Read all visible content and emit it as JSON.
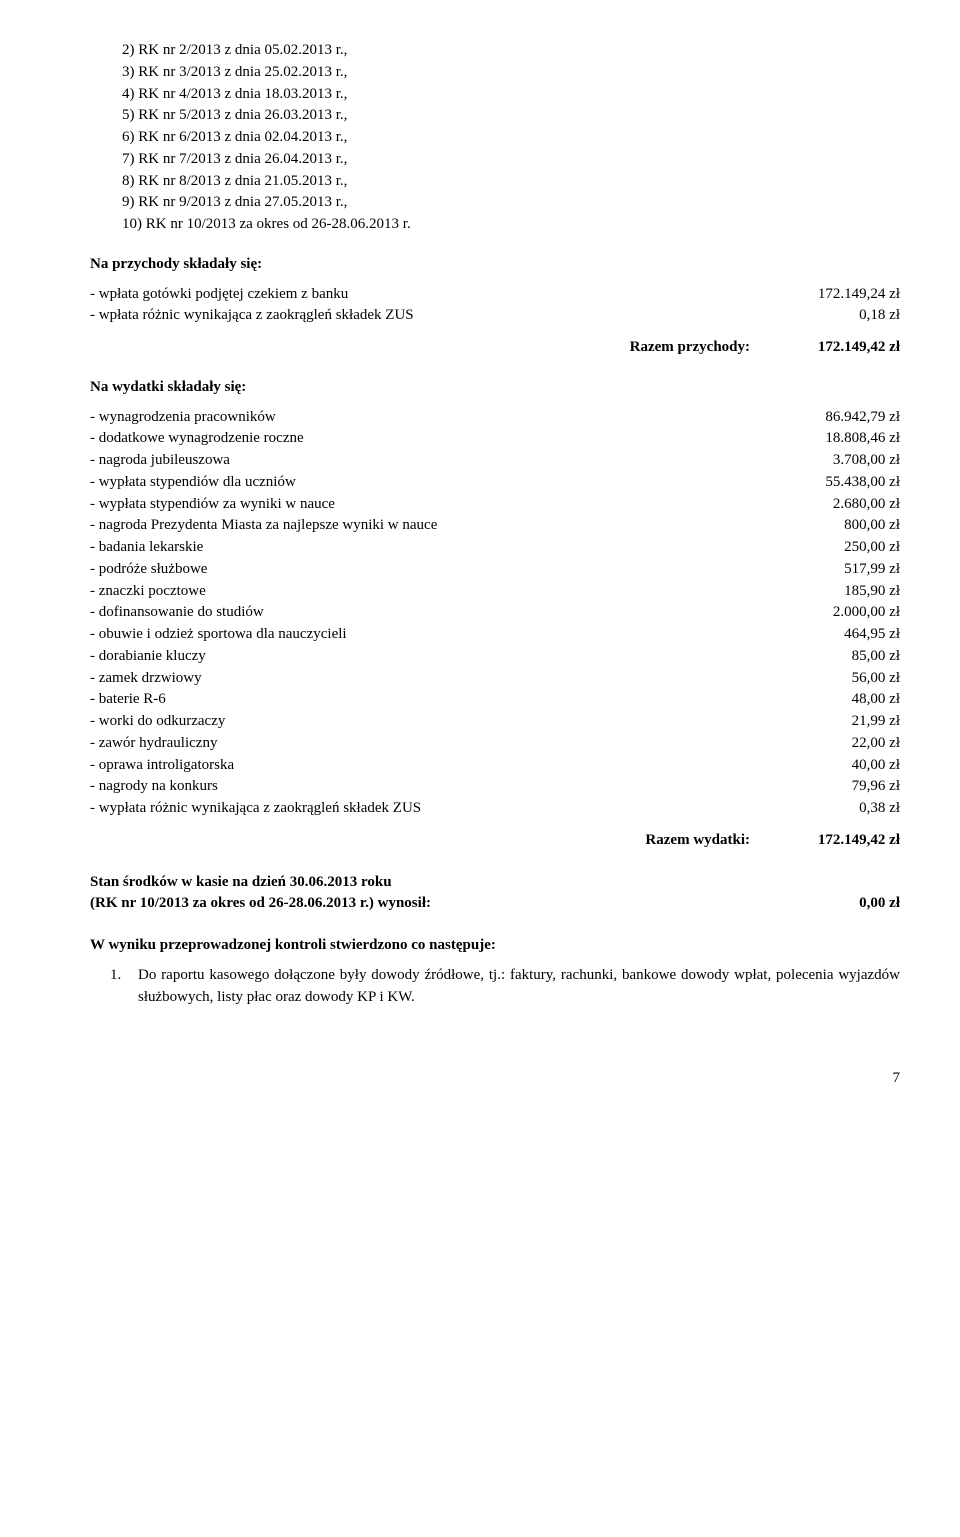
{
  "rk_list": [
    "2) RK nr 2/2013 z dnia 05.02.2013 r.,",
    "3) RK nr 3/2013 z dnia 25.02.2013 r.,",
    "4) RK nr 4/2013 z dnia 18.03.2013 r.,",
    "5) RK nr 5/2013 z dnia 26.03.2013 r.,",
    "6) RK nr 6/2013 z dnia 02.04.2013 r.,",
    "7) RK nr 7/2013 z dnia 26.04.2013 r.,",
    "8) RK nr 8/2013 z dnia 21.05.2013 r.,",
    "9) RK nr 9/2013 z dnia 27.05.2013 r.,",
    "10) RK nr 10/2013 za okres od 26-28.06.2013 r."
  ],
  "headings": {
    "przychody": "Na przychody składały się:",
    "wydatki": "Na wydatki składały się:",
    "razem_przychody": "Razem przychody:",
    "razem_wydatki": "Razem wydatki:",
    "wyniku": "W wyniku przeprowadzonej kontroli stwierdzono co następuje:"
  },
  "przychody_items": [
    {
      "label": "- wpłata gotówki podjętej czekiem z banku",
      "value": "172.149,24 zł"
    },
    {
      "label": "- wpłata różnic wynikająca z zaokrągleń składek ZUS",
      "value": "0,18 zł"
    }
  ],
  "razem_przychody_value": "172.149,42 zł",
  "wydatki_items": [
    {
      "label": "- wynagrodzenia pracowników",
      "value": "86.942,79 zł"
    },
    {
      "label": "- dodatkowe wynagrodzenie roczne",
      "value": "18.808,46 zł"
    },
    {
      "label": "- nagroda jubileuszowa",
      "value": "3.708,00 zł"
    },
    {
      "label": "- wypłata stypendiów dla uczniów",
      "value": "55.438,00 zł"
    },
    {
      "label": "- wypłata stypendiów za wyniki w nauce",
      "value": "2.680,00 zł"
    },
    {
      "label": "- nagroda Prezydenta Miasta za najlepsze wyniki w nauce",
      "value": "800,00 zł"
    },
    {
      "label": "- badania lekarskie",
      "value": "250,00 zł"
    },
    {
      "label": "- podróże służbowe",
      "value": "517,99 zł"
    },
    {
      "label": "- znaczki pocztowe",
      "value": "185,90 zł"
    },
    {
      "label": "- dofinansowanie do studiów",
      "value": "2.000,00 zł"
    },
    {
      "label": "- obuwie i odzież sportowa dla nauczycieli",
      "value": "464,95 zł"
    },
    {
      "label": "- dorabianie kluczy",
      "value": "85,00 zł"
    },
    {
      "label": "- zamek drzwiowy",
      "value": "56,00 zł"
    },
    {
      "label": "- baterie R-6",
      "value": "48,00 zł"
    },
    {
      "label": "- worki do odkurzaczy",
      "value": "21,99 zł"
    },
    {
      "label": "- zawór hydrauliczny",
      "value": "22,00 zł"
    },
    {
      "label": "- oprawa introligatorska",
      "value": "40,00 zł"
    },
    {
      "label": "- nagrody na konkurs",
      "value": "79,96 zł"
    },
    {
      "label": "- wypłata różnic wynikająca z zaokrągleń składek ZUS",
      "value": "0,38 zł"
    }
  ],
  "razem_wydatki_value": "172.149,42 zł",
  "stan": {
    "line1": "Stan środków w kasie na dzień 30.06.2013 roku",
    "line2": "(RK nr 10/2013 za okres od 26-28.06.2013 r.) wynosił:",
    "value": "0,00 zł"
  },
  "conclusion": {
    "num": "1.",
    "text": "Do raportu kasowego dołączone były dowody źródłowe, tj.: faktury, rachunki, bankowe dowody wpłat, polecenia wyjazdów służbowych, listy płac oraz dowody KP i KW."
  },
  "page_number": "7"
}
